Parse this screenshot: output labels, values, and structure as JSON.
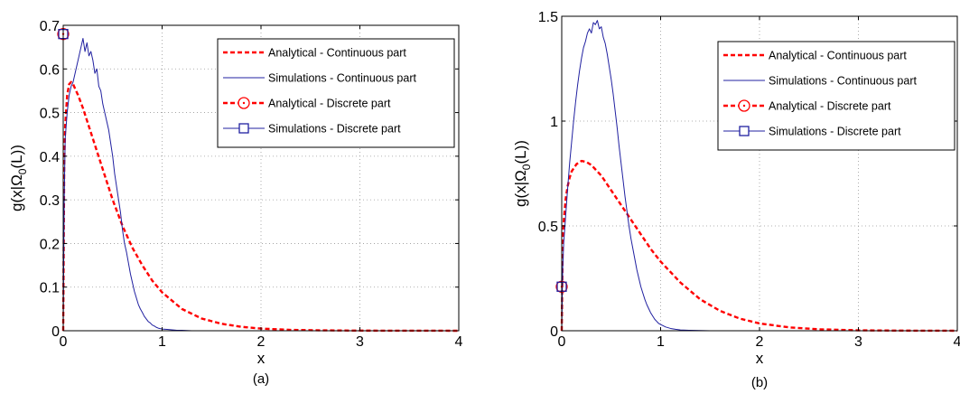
{
  "chart_data": [
    {
      "type": "line",
      "caption": "(a)",
      "xlabel": "x",
      "ylabel": "g(x|Ω",
      "ylabel_sub": "0",
      "ylabel_tail": "(L))",
      "xlim": [
        0,
        4
      ],
      "ylim": [
        0,
        0.7
      ],
      "xticks": [
        0,
        1,
        2,
        3,
        4
      ],
      "yticks": [
        0,
        0.1,
        0.2,
        0.3,
        0.4,
        0.5,
        0.6,
        0.7
      ],
      "grid": true,
      "legend_position": "top-right",
      "legend": [
        {
          "label": "Analytical - Continuous part",
          "color": "#ff0000",
          "style": "dashed",
          "marker": ""
        },
        {
          "label": "Simulations - Continuous part",
          "color": "#2020a0",
          "style": "solid",
          "marker": ""
        },
        {
          "label": "Analytical - Discrete part",
          "color": "#ff0000",
          "style": "dashed",
          "marker": "circle"
        },
        {
          "label": "Simulations - Discrete part",
          "color": "#2020a0",
          "style": "solid",
          "marker": "square"
        }
      ],
      "series": [
        {
          "role": "analytical-continuous",
          "color": "#ff0000",
          "style": "dashed",
          "x": [
            0,
            0.01,
            0.02,
            0.04,
            0.06,
            0.08,
            0.1,
            0.15,
            0.2,
            0.3,
            0.4,
            0.5,
            0.6,
            0.7,
            0.8,
            0.9,
            1.0,
            1.2,
            1.4,
            1.6,
            1.8,
            2.0,
            2.3,
            2.6,
            3.0,
            3.5,
            4.0
          ],
          "y": [
            0,
            0.38,
            0.47,
            0.54,
            0.565,
            0.57,
            0.565,
            0.54,
            0.51,
            0.44,
            0.37,
            0.3,
            0.24,
            0.19,
            0.15,
            0.115,
            0.088,
            0.05,
            0.028,
            0.016,
            0.009,
            0.005,
            0.002,
            0.001,
            0.0003,
            0.0001,
            0
          ]
        },
        {
          "role": "simulations-continuous",
          "color": "#2020a0",
          "style": "solid",
          "x": [
            0,
            0.01,
            0.02,
            0.04,
            0.06,
            0.08,
            0.1,
            0.12,
            0.14,
            0.16,
            0.18,
            0.2,
            0.22,
            0.24,
            0.26,
            0.28,
            0.3,
            0.32,
            0.34,
            0.36,
            0.38,
            0.4,
            0.42,
            0.44,
            0.46,
            0.48,
            0.5,
            0.52,
            0.54,
            0.56,
            0.58,
            0.6,
            0.62,
            0.64,
            0.66,
            0.68,
            0.7,
            0.72,
            0.74,
            0.76,
            0.78,
            0.8,
            0.82,
            0.84,
            0.86,
            0.88,
            0.9,
            0.92,
            0.94,
            0.96,
            0.98,
            1.0,
            1.05,
            1.1,
            1.15,
            1.2,
            1.3,
            1.4,
            1.5,
            2.0,
            3.0,
            4.0
          ],
          "y": [
            0,
            0.3,
            0.44,
            0.5,
            0.54,
            0.56,
            0.57,
            0.59,
            0.61,
            0.63,
            0.65,
            0.67,
            0.64,
            0.66,
            0.63,
            0.64,
            0.62,
            0.59,
            0.6,
            0.56,
            0.55,
            0.52,
            0.5,
            0.48,
            0.46,
            0.43,
            0.4,
            0.36,
            0.33,
            0.3,
            0.27,
            0.23,
            0.2,
            0.18,
            0.155,
            0.13,
            0.11,
            0.09,
            0.075,
            0.06,
            0.05,
            0.042,
            0.033,
            0.027,
            0.021,
            0.018,
            0.013,
            0.011,
            0.008,
            0.006,
            0.005,
            0.004,
            0.003,
            0.002,
            0.001,
            0.001,
            0,
            0,
            0,
            0,
            0,
            0
          ]
        },
        {
          "role": "analytical-discrete",
          "color": "#ff0000",
          "marker": "circle",
          "x": [
            0
          ],
          "y": [
            0.68
          ]
        },
        {
          "role": "simulations-discrete",
          "color": "#2020a0",
          "marker": "square",
          "x": [
            0
          ],
          "y": [
            0.68
          ]
        }
      ]
    },
    {
      "type": "line",
      "caption": "(b)",
      "xlabel": "x",
      "ylabel": "g(x|Ω",
      "ylabel_sub": "0",
      "ylabel_tail": "(L))",
      "xlim": [
        0,
        4
      ],
      "ylim": [
        0,
        1.5
      ],
      "xticks": [
        0,
        1,
        2,
        3,
        4
      ],
      "yticks": [
        0,
        0.5,
        1,
        1.5
      ],
      "grid": true,
      "legend_position": "top-right",
      "legend": [
        {
          "label": "Analytical - Continuous part",
          "color": "#ff0000",
          "style": "dashed",
          "marker": ""
        },
        {
          "label": "Simulations - Continuous part",
          "color": "#2020a0",
          "style": "solid",
          "marker": ""
        },
        {
          "label": "Analytical - Discrete part",
          "color": "#ff0000",
          "style": "dashed",
          "marker": "circle"
        },
        {
          "label": "Simulations - Discrete part",
          "color": "#2020a0",
          "style": "solid",
          "marker": "square"
        }
      ],
      "series": [
        {
          "role": "analytical-continuous",
          "color": "#ff0000",
          "style": "dashed",
          "x": [
            0,
            0.01,
            0.02,
            0.04,
            0.06,
            0.08,
            0.1,
            0.15,
            0.2,
            0.25,
            0.3,
            0.4,
            0.5,
            0.6,
            0.7,
            0.8,
            0.9,
            1.0,
            1.2,
            1.4,
            1.6,
            1.8,
            2.0,
            2.3,
            2.6,
            3.0,
            3.5,
            4.0
          ],
          "y": [
            0,
            0.42,
            0.52,
            0.63,
            0.69,
            0.73,
            0.76,
            0.795,
            0.81,
            0.805,
            0.79,
            0.74,
            0.67,
            0.6,
            0.53,
            0.46,
            0.39,
            0.33,
            0.23,
            0.15,
            0.095,
            0.058,
            0.035,
            0.016,
            0.007,
            0.002,
            0.0005,
            0
          ]
        },
        {
          "role": "simulations-continuous",
          "color": "#2020a0",
          "style": "solid",
          "x": [
            0,
            0.01,
            0.02,
            0.04,
            0.06,
            0.08,
            0.1,
            0.12,
            0.14,
            0.16,
            0.18,
            0.2,
            0.22,
            0.24,
            0.26,
            0.28,
            0.3,
            0.32,
            0.34,
            0.36,
            0.38,
            0.4,
            0.42,
            0.44,
            0.46,
            0.48,
            0.5,
            0.52,
            0.54,
            0.56,
            0.58,
            0.6,
            0.62,
            0.64,
            0.66,
            0.68,
            0.7,
            0.72,
            0.74,
            0.76,
            0.78,
            0.8,
            0.82,
            0.84,
            0.86,
            0.88,
            0.9,
            0.92,
            0.94,
            0.96,
            0.98,
            1.0,
            1.05,
            1.1,
            1.15,
            1.2,
            1.3,
            1.4,
            1.5,
            2.0,
            3.0,
            4.0
          ],
          "y": [
            0,
            0.3,
            0.42,
            0.55,
            0.68,
            0.8,
            0.9,
            1.0,
            1.09,
            1.17,
            1.24,
            1.3,
            1.35,
            1.38,
            1.42,
            1.44,
            1.42,
            1.47,
            1.46,
            1.48,
            1.44,
            1.45,
            1.4,
            1.37,
            1.32,
            1.26,
            1.2,
            1.13,
            1.05,
            0.97,
            0.88,
            0.8,
            0.72,
            0.64,
            0.57,
            0.5,
            0.44,
            0.39,
            0.34,
            0.29,
            0.25,
            0.21,
            0.18,
            0.15,
            0.125,
            0.105,
            0.085,
            0.07,
            0.055,
            0.045,
            0.035,
            0.03,
            0.018,
            0.011,
            0.007,
            0.004,
            0.002,
            0.001,
            0,
            0,
            0,
            0
          ]
        },
        {
          "role": "analytical-discrete",
          "color": "#ff0000",
          "marker": "circle",
          "x": [
            0
          ],
          "y": [
            0.21
          ]
        },
        {
          "role": "simulations-discrete",
          "color": "#2020a0",
          "marker": "square",
          "x": [
            0
          ],
          "y": [
            0.21
          ]
        }
      ]
    }
  ]
}
